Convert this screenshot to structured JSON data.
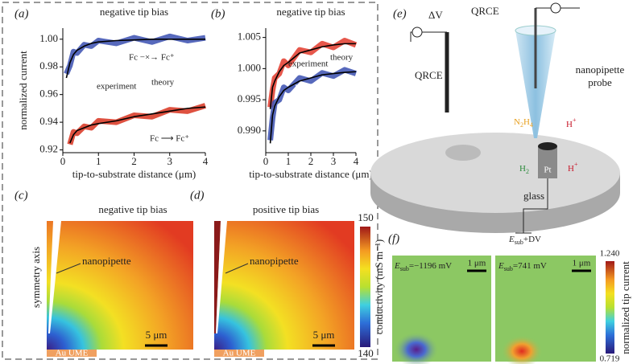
{
  "chart_data": [
    {
      "type": "line",
      "label": "(a)",
      "title": "negative tip bias",
      "x_label": "tip-to-substrate distance (μm)",
      "y_label": "normalized current",
      "x": [
        0.1,
        0.2,
        0.3,
        0.4,
        0.6,
        0.8,
        1.0,
        1.5,
        2.0,
        2.5,
        3.0,
        3.5,
        4.0
      ],
      "xlim": [
        0,
        4
      ],
      "xticks": [
        0,
        1,
        2,
        3,
        4
      ],
      "ylim": [
        0.918,
        1.008
      ],
      "yticks": [
        0.92,
        0.94,
        0.96,
        0.98,
        {
          "value": 1,
          "label": "1.00"
        }
      ],
      "series": [
        {
          "color": "#3a4fb0",
          "style": "experiment",
          "values": [
            0.975,
            0.981,
            0.991,
            0.99,
            0.996,
            0.995,
            0.999,
            0.997,
            1.001,
            0.998,
            1.002,
            0.999,
            1.001
          ]
        },
        {
          "color": "#d8321f",
          "style": "experiment",
          "values": [
            null,
            0.924,
            0.933,
            0.932,
            0.937,
            0.936,
            0.941,
            0.94,
            0.945,
            0.944,
            0.949,
            0.948,
            0.952
          ]
        },
        {
          "color": "#000000",
          "style": "theory",
          "values": [
            0.972,
            0.983,
            0.989,
            0.992,
            0.995,
            0.997,
            0.998,
            0.999,
            0.9995,
            1.0,
            1.0,
            1.0,
            1.0
          ]
        },
        {
          "color": "#000000",
          "style": "theory",
          "values": [
            null,
            0.925,
            0.931,
            0.934,
            0.936,
            0.938,
            0.939,
            0.941,
            0.944,
            0.946,
            0.948,
            0.95,
            0.951
          ]
        }
      ],
      "annotations": [
        "experiment",
        "theory",
        "Fc −×→ Fc⁺",
        "Fc ⟶ Fc⁺"
      ]
    },
    {
      "type": "line",
      "label": "(b)",
      "title": "negative tip bias",
      "x_label": "tip-to-substrate distance (μm)",
      "x": [
        0.1,
        0.2,
        0.3,
        0.4,
        0.6,
        0.8,
        1.0,
        1.5,
        2.0,
        2.5,
        3.0,
        3.5,
        4.0
      ],
      "xlim": [
        0,
        4
      ],
      "xticks": [
        0,
        1,
        2,
        3,
        4
      ],
      "ylim": [
        0.9865,
        1.0065
      ],
      "yticks": [
        {
          "value": 0.99,
          "label": "0.990"
        },
        {
          "value": 0.995,
          "label": "0.995"
        },
        {
          "value": 1,
          "label": "1.000"
        },
        {
          "value": 1.005,
          "label": "1.005"
        }
      ],
      "series": [
        {
          "color": "#e23a2b",
          "style": "experiment",
          "values": [
            null,
            0.9938,
            0.9965,
            0.9985,
            0.9992,
            1.0012,
            1.0005,
            1.003,
            1.0026,
            1.004,
            1.0034,
            1.0045,
            1.0038
          ]
        },
        {
          "color": "#3a4fb0",
          "style": "experiment",
          "values": [
            null,
            0.9885,
            0.992,
            0.9945,
            0.995,
            0.997,
            0.9965,
            0.9985,
            0.998,
            0.9993,
            0.9988,
            0.9998,
            0.9992
          ]
        },
        {
          "color": "#000000",
          "style": "theory",
          "values": [
            null,
            0.9935,
            0.997,
            0.998,
            0.9995,
            1.0005,
            1.001,
            1.0025,
            1.003,
            1.0035,
            1.0038,
            1.004,
            1.004
          ]
        },
        {
          "color": "#000000",
          "style": "theory",
          "values": [
            null,
            0.988,
            0.9925,
            0.994,
            0.9955,
            0.9965,
            0.997,
            0.998,
            0.9985,
            0.999,
            0.9992,
            0.9994,
            0.9995
          ]
        }
      ],
      "annotations": [
        "Fc ⟶ Fc⁺",
        "experiment",
        "theory",
        "Fc −×→ Fc⁺"
      ]
    }
  ],
  "panel_c": {
    "label": "(c)",
    "title": "negative tip bias",
    "axis_label": "symmetry axis",
    "pipette": "nanopipette",
    "scale": "5 μm",
    "electrode": "Au UME"
  },
  "panel_d": {
    "label": "(d)",
    "title": "positive tip bias",
    "pipette": "nanopipette",
    "scale": "5 μm",
    "electrode": "Au UME"
  },
  "colorbar_cd": {
    "label": "conductivity (mS m⁻¹)",
    "max": "150",
    "min": "140"
  },
  "panel_e": {
    "label": "(e)",
    "dv": "ΔV",
    "qrce_left": "QRCE",
    "qrce_top": "QRCE",
    "pipette": "nanopipette",
    "probe": "probe",
    "n": "N",
    "n_sub": "2",
    "h": "H",
    "h_sub": "4",
    "h1": "H",
    "h1_sup": "+",
    "h2": "H",
    "h2_sup": "+",
    "h3": "H",
    "h3_sub": "2",
    "pt": "Pt",
    "glass": "glass",
    "e": "E",
    "e_sub": "sub",
    "e_rest": "+DV"
  },
  "panel_f": {
    "label": "(f)",
    "left": {
      "e": "E",
      "sub": "sub",
      "value": "=−1196 mV",
      "scale": "1 μm"
    },
    "right": {
      "e": "E",
      "sub": "sub",
      "value": "=741 mV",
      "scale": "1 μm"
    },
    "colorbar": {
      "max": "1.240",
      "min": "0.719",
      "label": "normalized tip current"
    }
  }
}
